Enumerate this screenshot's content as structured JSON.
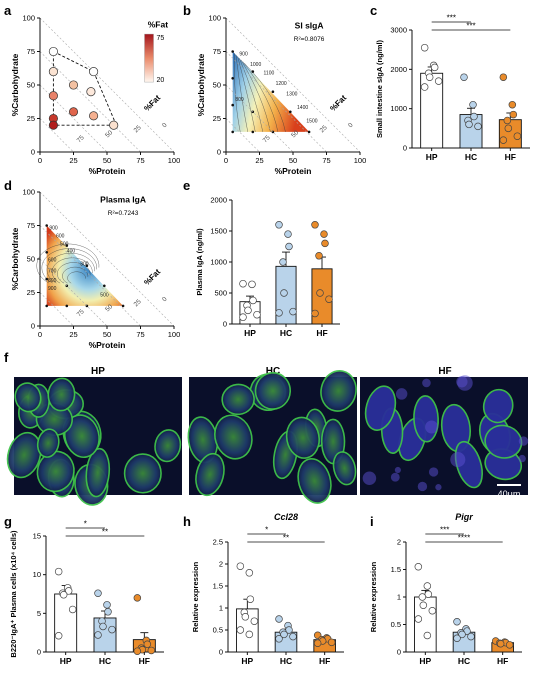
{
  "panel_letters": [
    "a",
    "b",
    "c",
    "d",
    "e",
    "f",
    "g",
    "h",
    "i"
  ],
  "chart_data": [
    {
      "panel": "a",
      "type": "scatter",
      "xlabel": "%Protein",
      "ylabel": "%Carbohydrate",
      "fat_label": "%Fat",
      "ticks": [
        0,
        25,
        50,
        75,
        100
      ],
      "colorbar": {
        "title": "%Fat",
        "max": "75",
        "min": "20"
      },
      "points": [
        {
          "x": 10,
          "y": 75,
          "fat": 15,
          "color": "#ffffff"
        },
        {
          "x": 10,
          "y": 60,
          "fat": 30,
          "color": "#fbe3d2"
        },
        {
          "x": 10,
          "y": 42,
          "fat": 48,
          "color": "#e8826a"
        },
        {
          "x": 10,
          "y": 25,
          "fat": 65,
          "color": "#c7392c"
        },
        {
          "x": 10,
          "y": 20,
          "fat": 70,
          "color": "#b01e1e"
        },
        {
          "x": 25,
          "y": 50,
          "fat": 25,
          "color": "#f3c1a2"
        },
        {
          "x": 25,
          "y": 30,
          "fat": 45,
          "color": "#e0654c"
        },
        {
          "x": 38,
          "y": 45,
          "fat": 17,
          "color": "#fde9dc"
        },
        {
          "x": 40,
          "y": 27,
          "fat": 33,
          "color": "#f4b090"
        },
        {
          "x": 55,
          "y": 20,
          "fat": 25,
          "color": "#fbe1cf"
        },
        {
          "x": 40,
          "y": 60,
          "fat": 0,
          "color": "#ffffff"
        }
      ]
    },
    {
      "panel": "b",
      "type": "heatmap",
      "title": "SI sIgA",
      "r2": "R²=0.8076",
      "xlabel": "%Protein",
      "ylabel": "%Carbohydrate",
      "fat_label": "%Fat",
      "ticks": [
        0,
        25,
        50,
        75,
        100
      ],
      "contour_labels": [
        "900",
        "1000",
        "1100",
        "1200",
        "1300",
        "1400",
        "1500",
        "800"
      ]
    },
    {
      "panel": "c",
      "type": "bar",
      "ylabel": "Small intestine sIgA (ng/ml)",
      "categories": [
        "HP",
        "HC",
        "HF"
      ],
      "ylim": [
        0,
        3000
      ],
      "yticks": [
        0,
        1000,
        2000,
        3000
      ],
      "values": [
        1900,
        850,
        720
      ],
      "sem": [
        160,
        160,
        170
      ],
      "fills": [
        "#ffffff",
        "#b9d3ea",
        "#e98b2a"
      ],
      "points": [
        [
          2550,
          2100,
          2050,
          1900,
          1800,
          1700,
          1550
        ],
        [
          1800,
          1100,
          800,
          700,
          600,
          550
        ],
        [
          1800,
          1100,
          850,
          700,
          500,
          300,
          200
        ]
      ],
      "significance": [
        {
          "from": 0,
          "to": 1,
          "label": "***"
        },
        {
          "from": 0,
          "to": 2,
          "label": "***"
        }
      ]
    },
    {
      "panel": "d",
      "type": "heatmap",
      "title": "Plasma IgA",
      "r2": "R²=0.7243",
      "xlabel": "%Protein",
      "ylabel": "%Carbohydrate",
      "fat_label": "%Fat",
      "ticks": [
        0,
        25,
        50,
        75,
        100
      ],
      "contour_labels": [
        "900",
        "600",
        "500",
        "400",
        "300",
        "500",
        "600",
        "700",
        "800",
        "900"
      ]
    },
    {
      "panel": "e",
      "type": "bar",
      "ylabel": "Plasma IgA (ng/ml)",
      "categories": [
        "HP",
        "HC",
        "HF"
      ],
      "ylim": [
        0,
        2000
      ],
      "yticks": [
        0,
        500,
        1000,
        1500,
        2000
      ],
      "values": [
        360,
        930,
        890
      ],
      "sem": [
        90,
        230,
        190
      ],
      "fills": [
        "#ffffff",
        "#b9d3ea",
        "#e98b2a"
      ],
      "points": [
        [
          650,
          640,
          380,
          300,
          220,
          150,
          110
        ],
        [
          1600,
          1450,
          1250,
          1000,
          500,
          200,
          180
        ],
        [
          1600,
          1450,
          1300,
          1100,
          500,
          400,
          170
        ]
      ],
      "significance": []
    },
    {
      "panel": "g",
      "type": "bar",
      "ylabel": "B220⁻IgA⁺ Plasma cells (x10⁴ cells)",
      "categories": [
        "HP",
        "HC",
        "HF"
      ],
      "ylim": [
        0,
        15
      ],
      "yticks": [
        0,
        5,
        10,
        15
      ],
      "values": [
        7.5,
        4.4,
        1.6
      ],
      "sem": [
        1.1,
        0.9,
        0.9
      ],
      "fills": [
        "#ffffff",
        "#b9d3ea",
        "#e98b2a"
      ],
      "points": [
        [
          10.4,
          8.3,
          7.9,
          7.6,
          7.4,
          5.5,
          2.1
        ],
        [
          7.6,
          6.1,
          5.2,
          4.0,
          3.3,
          2.9,
          2.2
        ],
        [
          7.0,
          1.5,
          1.0,
          0.5,
          0.3,
          0.2,
          0.1
        ]
      ],
      "significance": [
        {
          "from": 0,
          "to": 1,
          "label": "*"
        },
        {
          "from": 0,
          "to": 2,
          "label": "**"
        }
      ]
    },
    {
      "panel": "h",
      "type": "bar",
      "title": "Ccl28",
      "ylabel": "Relative expression",
      "categories": [
        "HP",
        "HC",
        "HF"
      ],
      "ylim": [
        0,
        2.5
      ],
      "yticks": [
        0,
        0.5,
        1.0,
        1.5,
        2.0,
        2.5
      ],
      "values": [
        0.98,
        0.45,
        0.28
      ],
      "sem": [
        0.22,
        0.07,
        0.03
      ],
      "fills": [
        "#ffffff",
        "#b9d3ea",
        "#e98b2a"
      ],
      "points": [
        [
          1.95,
          1.8,
          1.2,
          0.9,
          0.8,
          0.7,
          0.5,
          0.4
        ],
        [
          0.75,
          0.6,
          0.5,
          0.45,
          0.4,
          0.35,
          0.3
        ],
        [
          0.38,
          0.32,
          0.3,
          0.28,
          0.25,
          0.22,
          0.2
        ]
      ],
      "significance": [
        {
          "from": 0,
          "to": 1,
          "label": "*"
        },
        {
          "from": 0,
          "to": 2,
          "label": "**"
        }
      ]
    },
    {
      "panel": "i",
      "type": "bar",
      "title": "Pigr",
      "ylabel": "Relative expression",
      "categories": [
        "HP",
        "HC",
        "HF"
      ],
      "ylim": [
        0,
        2.0
      ],
      "yticks": [
        0,
        0.5,
        1.0,
        1.5,
        2.0
      ],
      "values": [
        1.0,
        0.36,
        0.17
      ],
      "sem": [
        0.12,
        0.04,
        0.02
      ],
      "fills": [
        "#ffffff",
        "#b9d3ea",
        "#e98b2a"
      ],
      "points": [
        [
          1.55,
          1.2,
          1.05,
          1.0,
          0.85,
          0.75,
          0.6,
          0.3
        ],
        [
          0.55,
          0.42,
          0.38,
          0.35,
          0.32,
          0.28,
          0.25
        ],
        [
          0.2,
          0.18,
          0.17,
          0.16,
          0.15,
          0.13
        ]
      ],
      "significance": [
        {
          "from": 0,
          "to": 1,
          "label": "***"
        },
        {
          "from": 0,
          "to": 2,
          "label": "****"
        }
      ]
    }
  ],
  "micrographs": {
    "labels": [
      "HP",
      "HC",
      "HF"
    ],
    "scale_bar": "40μm"
  }
}
